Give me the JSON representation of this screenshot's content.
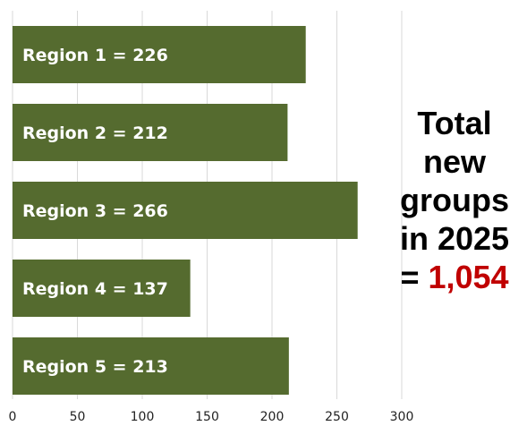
{
  "chart_data": {
    "type": "bar",
    "orientation": "horizontal",
    "categories": [
      "Region 1",
      "Region 2",
      "Region 3",
      "Region 4",
      "Region 5"
    ],
    "values": [
      226,
      212,
      266,
      137,
      213
    ],
    "bar_labels": [
      "Region 1 = 226",
      "Region 2 = 212",
      "Region 3 = 266",
      "Region 4 = 137",
      "Region 5 = 213"
    ],
    "x_ticks": [
      0,
      50,
      100,
      150,
      200,
      250,
      300
    ],
    "xlim": [
      0,
      300
    ],
    "grid": true,
    "bar_color": "#556b2f"
  },
  "total": {
    "line1": "Total",
    "line2": "new",
    "line3": "groups",
    "line4": "in 2025",
    "prefix": "= ",
    "value": "1,054",
    "value_color": "#c00000"
  }
}
